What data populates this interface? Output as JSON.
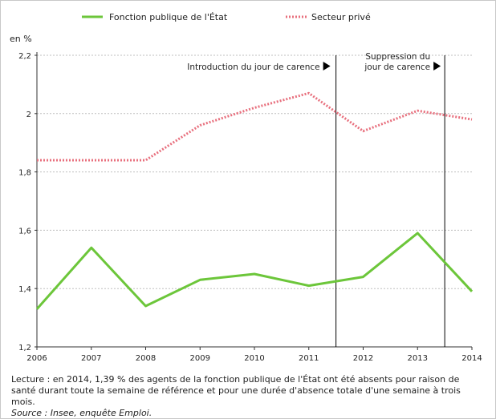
{
  "chart_data": {
    "type": "line",
    "ylabel": "en %",
    "ylim": [
      1.2,
      2.2
    ],
    "yticks": [
      1.2,
      1.4,
      1.6,
      1.8,
      2,
      2.2
    ],
    "ytick_labels": [
      "1,2",
      "1,4",
      "1,6",
      "1,8",
      "2",
      "2,2"
    ],
    "x": [
      2006,
      2007,
      2008,
      2009,
      2010,
      2011,
      2012,
      2013,
      2014
    ],
    "x_labels": [
      "2006",
      "2007",
      "2008",
      "2009",
      "2010",
      "2011",
      "2012",
      "2013",
      "2014"
    ],
    "series": [
      {
        "name": "Fonction publique de l'État",
        "color": "#6cc63a",
        "style": "solid",
        "values": [
          1.33,
          1.54,
          1.34,
          1.43,
          1.45,
          1.41,
          1.44,
          1.59,
          1.39
        ]
      },
      {
        "name": "Secteur privé",
        "color": "#e8707e",
        "style": "dotted",
        "values": [
          1.84,
          1.84,
          1.84,
          1.96,
          2.02,
          2.07,
          1.94,
          2.01,
          1.98
        ]
      }
    ],
    "legend_position": "top",
    "annotations": [
      {
        "x": 2011.5,
        "text_lines": [
          "Introduction du jour de carence"
        ]
      },
      {
        "x": 2013.5,
        "text_lines": [
          "Suppression du",
          "jour de carence"
        ]
      }
    ]
  },
  "caption": {
    "lecture": "Lecture : en 2014, 1,39 % des agents de la fonction publique de l'État ont été absents pour raison de santé durant toute la semaine de référence et pour une durée d'absence totale d'une semaine à trois mois.",
    "source": "Source : Insee, enquête Emploi."
  }
}
